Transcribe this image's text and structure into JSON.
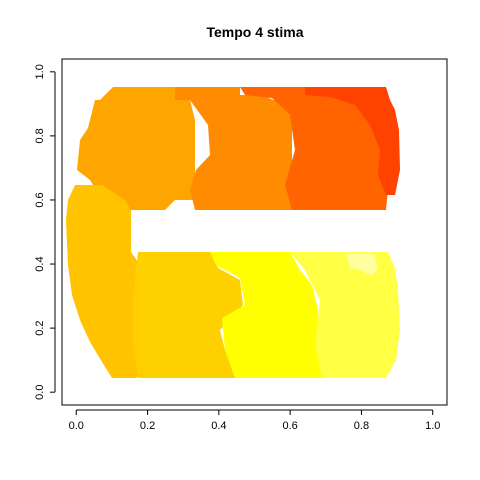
{
  "chart_data": {
    "type": "heatmap",
    "title": "Tempo 4 stima",
    "xlabel": "",
    "ylabel": "",
    "xlim": [
      0,
      1
    ],
    "ylim": [
      0,
      1
    ],
    "x_ticks": [
      "0.0",
      "0.2",
      "0.4",
      "0.6",
      "0.8",
      "1.0"
    ],
    "y_ticks": [
      "0.0",
      "0.2",
      "0.4",
      "0.6",
      "0.8",
      "1.0"
    ],
    "grid": false,
    "legend": "none",
    "color_scale": "heat (red = high, orange = mid, yellow/white = low)",
    "regions": [
      {
        "name": "upper-arm-left",
        "x": [
          0.04,
          0.29
        ],
        "y": [
          0.6,
          0.93
        ],
        "color": "#FFA500"
      },
      {
        "name": "upper-arm-mid",
        "x": [
          0.29,
          0.6
        ],
        "y": [
          0.6,
          0.93
        ],
        "color": "#FF8C00"
      },
      {
        "name": "upper-arm-right",
        "x": [
          0.6,
          0.87
        ],
        "y": [
          0.6,
          0.93
        ],
        "color": "#FF6400"
      },
      {
        "name": "upper-arm-tip",
        "x": [
          0.76,
          0.88
        ],
        "y": [
          0.62,
          0.93
        ],
        "color": "#FF4000"
      },
      {
        "name": "bend",
        "x": [
          0.02,
          0.21
        ],
        "y": [
          0.18,
          0.62
        ],
        "color": "#FFC400"
      },
      {
        "name": "lower-arm-left",
        "x": [
          0.2,
          0.46
        ],
        "y": [
          0.07,
          0.45
        ],
        "color": "#FFD700"
      },
      {
        "name": "lower-arm-mid",
        "x": [
          0.44,
          0.66
        ],
        "y": [
          0.07,
          0.45
        ],
        "color": "#FFFF00"
      },
      {
        "name": "lower-arm-right",
        "x": [
          0.66,
          0.88
        ],
        "y": [
          0.07,
          0.45
        ],
        "color": "#FFFF40"
      },
      {
        "name": "lower-arm-tip",
        "x": [
          0.74,
          0.84
        ],
        "y": [
          0.39,
          0.45
        ],
        "color": "#FFFFA0"
      }
    ]
  }
}
